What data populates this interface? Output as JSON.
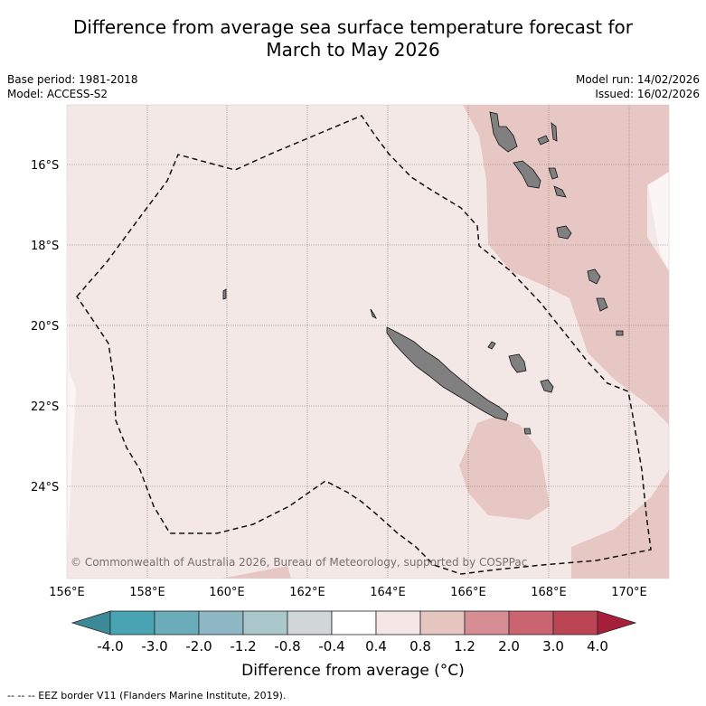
{
  "title": {
    "line1": "Difference from average sea surface temperature forecast for",
    "line2": "March to May 2026"
  },
  "meta": {
    "base_period": "Base period: 1981-2018",
    "model": "Model: ACCESS-S2",
    "model_run": "Model run: 14/02/2026",
    "issued": "Issued: 16/02/2026"
  },
  "map": {
    "lat_labels": [
      "16°S",
      "18°S",
      "20°S",
      "22°S",
      "24°S"
    ],
    "lon_labels": [
      "156°E",
      "158°E",
      "160°E",
      "162°E",
      "164°E",
      "166°E",
      "168°E",
      "170°E"
    ],
    "credit": "© Commonwealth of Australia 2026, Bureau of Meteorology, supported by COSPPac",
    "colors": {
      "ocean_background": "#f4e8e6",
      "warm_anomaly": "#e7c7c3",
      "near_zero": "#fbf5f4",
      "land": "#808080",
      "grid": "#8a7a7a"
    }
  },
  "colorbar": {
    "ticks": [
      "-4.0",
      "-3.0",
      "-2.0",
      "-1.2",
      "-0.8",
      "-0.4",
      "0.4",
      "0.8",
      "1.2",
      "2.0",
      "3.0",
      "4.0"
    ],
    "colors": [
      "#3c8a98",
      "#48a3b2",
      "#6aacba",
      "#8db8c3",
      "#aac8cb",
      "#d1d6d6",
      "#ffffff",
      "#f5e7e5",
      "#e6c6c1",
      "#d68d94",
      "#c96470",
      "#bb4455",
      "#a81f3c"
    ],
    "title": "Difference from average (°C)"
  },
  "footer": "--  --  -- EEZ border V11 (Flanders Marine Institute, 2019)."
}
